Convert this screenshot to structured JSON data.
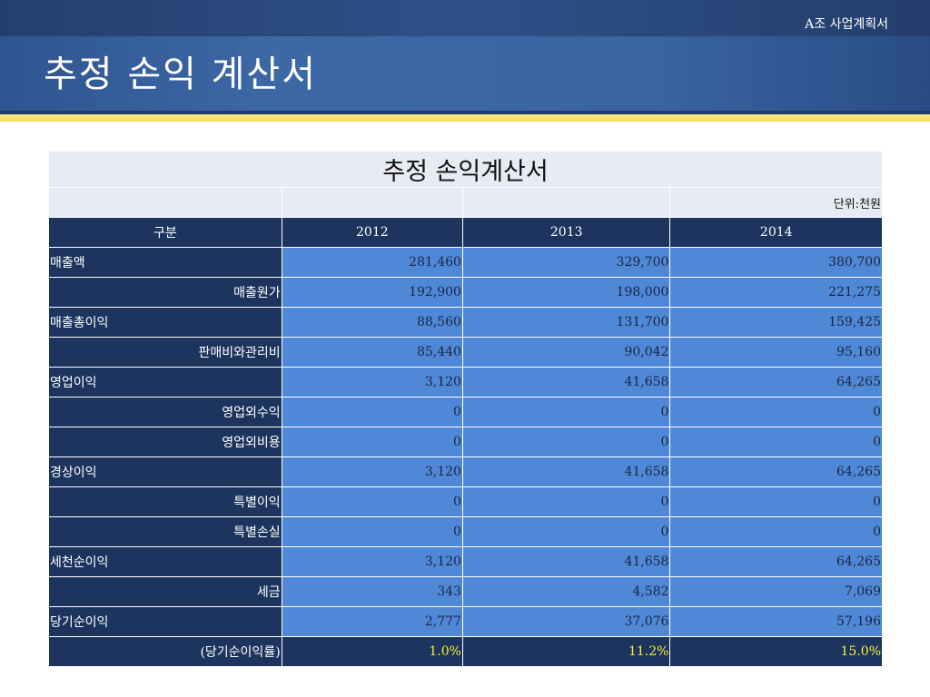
{
  "header": {
    "company": "A조 사업계획서",
    "title": "추정 손익 계산서"
  },
  "table": {
    "title": "추정 손익계산서",
    "unit": "단위:천원",
    "columns": [
      "구분",
      "2012",
      "2013",
      "2014"
    ],
    "rows": [
      {
        "label": "매출액",
        "values": [
          "281,460",
          "329,700",
          "380,700"
        ]
      },
      {
        "label": "매출원가",
        "values": [
          "192,900",
          "198,000",
          "221,275"
        ]
      },
      {
        "label": "매출총이익",
        "values": [
          "88,560",
          "131,700",
          "159,425"
        ]
      },
      {
        "label": "판매비와관리비",
        "values": [
          "85,440",
          "90,042",
          "95,160"
        ]
      },
      {
        "label": "영업이익",
        "values": [
          "3,120",
          "41,658",
          "64,265"
        ]
      },
      {
        "label": "영업외수익",
        "values": [
          "0",
          "0",
          "0"
        ]
      },
      {
        "label": "영업외비용",
        "values": [
          "0",
          "0",
          "0"
        ]
      },
      {
        "label": "경상이익",
        "values": [
          "3,120",
          "41,658",
          "64,265"
        ]
      },
      {
        "label": "특별이익",
        "values": [
          "0",
          "0",
          "0"
        ]
      },
      {
        "label": "특별손실",
        "values": [
          "0",
          "0",
          "0"
        ]
      },
      {
        "label": "세천순이익",
        "values": [
          "3,120",
          "41,658",
          "64,265"
        ]
      },
      {
        "label": "세금",
        "values": [
          "343",
          "4,582",
          "7,069"
        ]
      },
      {
        "label": "당기순이익",
        "values": [
          "2,777",
          "37,076",
          "57,196"
        ]
      },
      {
        "label": "(당기순이익률)",
        "values": [
          "1.0%",
          "11.2%",
          "15.0%"
        ]
      }
    ]
  }
}
